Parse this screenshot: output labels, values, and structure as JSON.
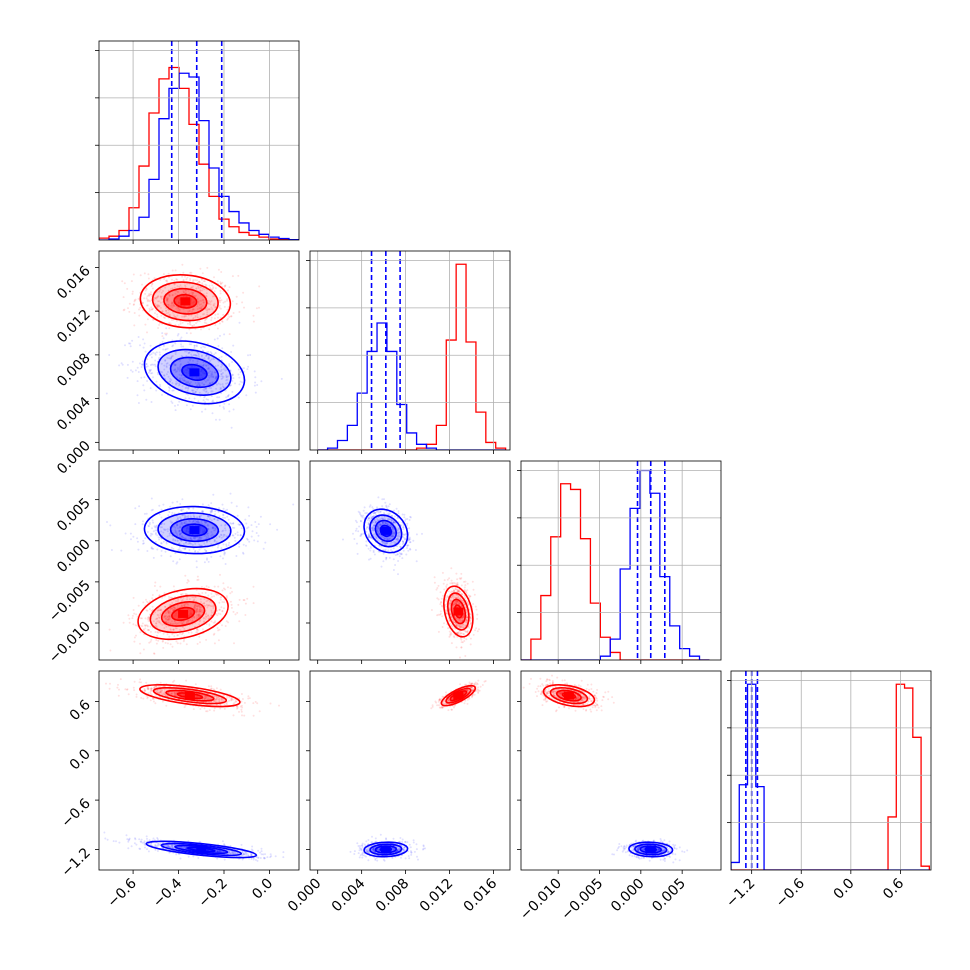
{
  "chart_data": {
    "type": "corner",
    "grid": true,
    "colors": {
      "series_a": "#ff0000",
      "series_b": "#0000ff"
    },
    "series": [
      {
        "color": "#ff0000",
        "means": [
          -0.38,
          0.0128,
          -0.0088,
          0.66
        ]
      },
      {
        "color": "#0000ff",
        "means": [
          -0.32,
          0.0062,
          0.0012,
          -1.2
        ]
      }
    ],
    "params": [
      {
        "range": [
          -0.75,
          0.13
        ],
        "ticks": [
          -0.6,
          -0.4,
          -0.2,
          0.0
        ],
        "tick_labels": [
          "−0.6",
          "−0.4",
          "−0.2",
          "0.0"
        ]
      },
      {
        "range": [
          -0.0007,
          0.0175
        ],
        "ticks": [
          0.0,
          0.004,
          0.008,
          0.012,
          0.016
        ],
        "tick_labels": [
          "0.000",
          "0.004",
          "0.008",
          "0.012",
          "0.016"
        ]
      },
      {
        "range": [
          -0.0145,
          0.0097
        ],
        "ticks": [
          -0.01,
          -0.005,
          0.0,
          0.005
        ],
        "tick_labels": [
          "−0.010",
          "−0.005",
          "0.000",
          "0.005"
        ]
      },
      {
        "range": [
          -1.45,
          0.97
        ],
        "ticks": [
          -1.2,
          -0.6,
          0.0,
          0.6
        ],
        "tick_labels": [
          "−1.2",
          "−0.6",
          "0.0",
          "0.6"
        ]
      }
    ],
    "quantiles": [
      [
        -0.43,
        -0.32,
        -0.21
      ],
      [
        0.0049,
        0.0062,
        0.0075
      ],
      [
        -0.0004,
        0.0012,
        0.0029
      ],
      [
        -1.27,
        -1.2,
        -1.13
      ]
    ],
    "histograms": [
      {
        "edges": [
          -0.75,
          -0.706,
          -0.662,
          -0.618,
          -0.574,
          -0.53,
          -0.486,
          -0.442,
          -0.398,
          -0.354,
          -0.31,
          -0.266,
          -0.222,
          -0.178,
          -0.134,
          -0.09,
          -0.046,
          -0.002,
          0.042,
          0.086,
          0.13
        ],
        "red": [
          0.01,
          0.02,
          0.05,
          0.17,
          0.39,
          0.67,
          0.85,
          0.91,
          0.8,
          0.61,
          0.4,
          0.23,
          0.11,
          0.07,
          0.04,
          0.025,
          0.015,
          0.005,
          0.002,
          0
        ],
        "blue": [
          0,
          0.005,
          0.02,
          0.05,
          0.12,
          0.32,
          0.64,
          0.8,
          0.88,
          0.86,
          0.63,
          0.38,
          0.23,
          0.15,
          0.09,
          0.05,
          0.03,
          0.015,
          0.008,
          0.002
        ]
      },
      {
        "edges": [
          0.0,
          0.0009,
          0.0018,
          0.0027,
          0.0036,
          0.0045,
          0.0054,
          0.0063,
          0.0072,
          0.0081,
          0.009,
          0.0099,
          0.0108,
          0.0117,
          0.0126,
          0.0135,
          0.0144,
          0.0153,
          0.0162,
          0.0171
        ],
        "red": [
          0,
          0,
          0,
          0,
          0,
          0,
          0,
          0,
          0,
          0,
          0.01,
          0.03,
          0.13,
          0.58,
          0.98,
          0.57,
          0.2,
          0.04,
          0.01
        ],
        "blue": [
          0,
          0.01,
          0.05,
          0.13,
          0.3,
          0.52,
          0.67,
          0.52,
          0.24,
          0.09,
          0.03,
          0.01,
          0,
          0,
          0,
          0,
          0,
          0,
          0
        ]
      },
      {
        "edges": [
          -0.0145,
          -0.0133,
          -0.0121,
          -0.0109,
          -0.0097,
          -0.0085,
          -0.0073,
          -0.0061,
          -0.0049,
          -0.0037,
          -0.0025,
          -0.0013,
          -0.0001,
          0.0011,
          0.0023,
          0.0035,
          0.0047,
          0.0059,
          0.0071,
          0.0083
        ],
        "red": [
          0,
          0.11,
          0.34,
          0.65,
          0.93,
          0.9,
          0.64,
          0.3,
          0.12,
          0.04,
          0,
          0,
          0,
          0,
          0,
          0,
          0,
          0,
          0
        ],
        "blue": [
          0,
          0,
          0,
          0,
          0,
          0,
          0,
          0,
          0.02,
          0.11,
          0.48,
          0.8,
          1.0,
          0.88,
          0.44,
          0.18,
          0.06,
          0.02,
          0
        ]
      },
      {
        "edges": [
          -1.45,
          -1.35,
          -1.25,
          -1.15,
          -1.05,
          -0.95,
          -0.85,
          -0.75,
          -0.65,
          -0.55,
          -0.45,
          -0.35,
          -0.25,
          -0.15,
          -0.05,
          0.05,
          0.15,
          0.25,
          0.35,
          0.45,
          0.55,
          0.65,
          0.75,
          0.85,
          0.95
        ],
        "red": [
          0,
          0,
          0,
          0,
          0,
          0,
          0,
          0,
          0,
          0,
          0,
          0,
          0,
          0,
          0,
          0,
          0,
          0,
          0,
          0.28,
          0.98,
          0.96,
          0.7,
          0.02
        ],
        "blue": [
          0.04,
          0.45,
          0.98,
          0.44,
          0,
          0,
          0,
          0,
          0,
          0,
          0,
          0,
          0,
          0,
          0,
          0,
          0,
          0,
          0,
          0,
          0,
          0,
          0,
          0
        ]
      }
    ],
    "scatter_2d": [
      {
        "pair": [
          0,
          1
        ],
        "red": {
          "mean": [
            -0.37,
            0.0129
          ],
          "sd": [
            0.09,
            0.0011
          ],
          "rho": -0.1
        },
        "blue": {
          "mean": [
            -0.33,
            0.0064
          ],
          "sd": [
            0.1,
            0.0013
          ],
          "rho": -0.25
        }
      },
      {
        "pair": [
          0,
          2
        ],
        "red": {
          "mean": [
            -0.38,
            -0.0089
          ],
          "sd": [
            0.09,
            0.0014
          ],
          "rho": 0.3
        },
        "blue": {
          "mean": [
            -0.33,
            0.0013
          ],
          "sd": [
            0.1,
            0.0013
          ],
          "rho": -0.05
        }
      },
      {
        "pair": [
          1,
          2
        ],
        "red": {
          "mean": [
            0.0128,
            -0.0086
          ],
          "sd": [
            0.0006,
            0.0014
          ],
          "rho": -0.3
        },
        "blue": {
          "mean": [
            0.0062,
            0.0012
          ],
          "sd": [
            0.0009,
            0.0012
          ],
          "rho": -0.2
        }
      },
      {
        "pair": [
          0,
          3
        ],
        "red": {
          "mean": [
            -0.35,
            0.67
          ],
          "sd": [
            0.1,
            0.06
          ],
          "rho": -0.6
        },
        "blue": {
          "mean": [
            -0.3,
            -1.2
          ],
          "sd": [
            0.11,
            0.045
          ],
          "rho": -0.7
        }
      },
      {
        "pair": [
          1,
          3
        ],
        "red": {
          "mean": [
            0.0128,
            0.67
          ],
          "sd": [
            0.0007,
            0.055
          ],
          "rho": 0.75
        },
        "blue": {
          "mean": [
            0.0062,
            -1.2
          ],
          "sd": [
            0.0009,
            0.04
          ],
          "rho": 0.1
        }
      },
      {
        "pair": [
          2,
          3
        ],
        "red": {
          "mean": [
            -0.0087,
            0.67
          ],
          "sd": [
            0.0014,
            0.06
          ],
          "rho": -0.4
        },
        "blue": {
          "mean": [
            0.0012,
            -1.2
          ],
          "sd": [
            0.0012,
            0.04
          ],
          "rho": -0.1
        }
      }
    ]
  }
}
